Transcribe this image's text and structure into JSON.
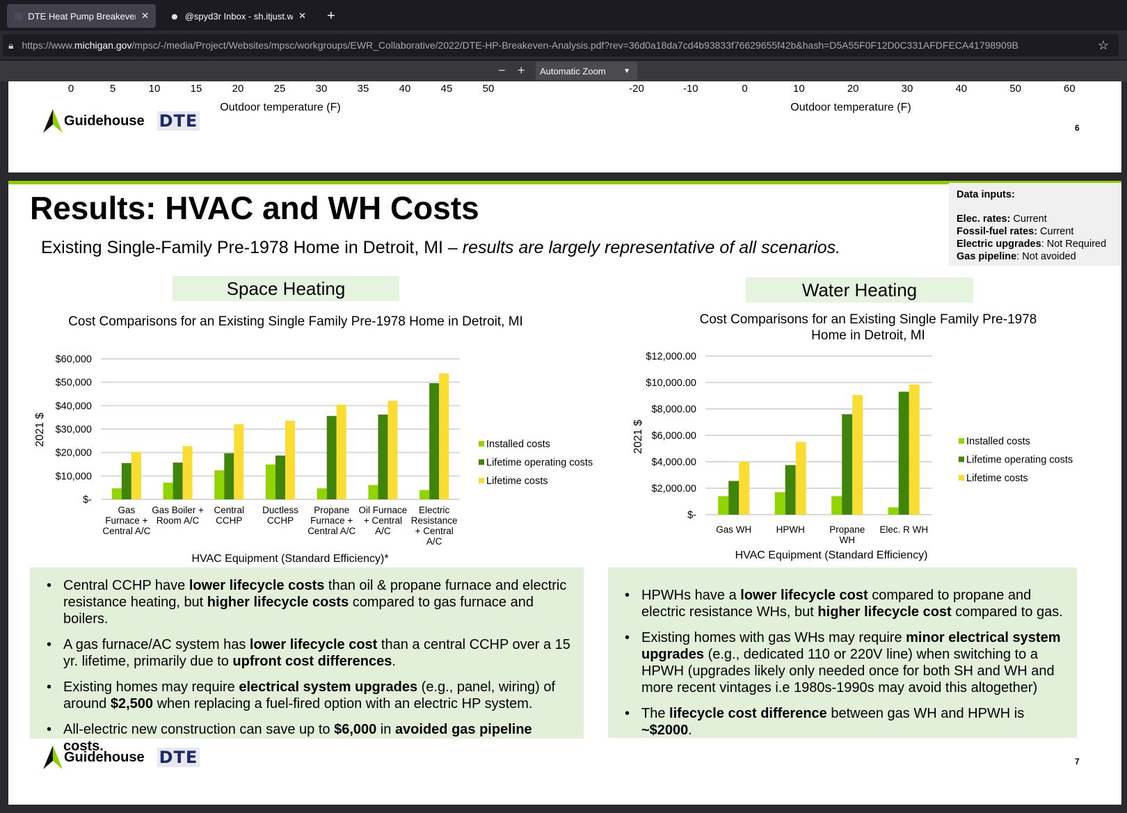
{
  "browser": {
    "tabs": [
      {
        "label": "DTE Heat Pump Breakeven",
        "active": true
      },
      {
        "label": "@spyd3r Inbox - sh.itjust.w",
        "active": false
      }
    ],
    "url_prefix": "https://www.",
    "url_domain": "michigan.gov",
    "url_rest": "/mpsc/-/media/Project/Websites/mpsc/workgroups/EWR_Collaborative/2022/DTE-HP-Breakeven-Analysis.pdf?rev=36d0a18da7cd4b93833f76629655f42b&hash=D5A55F0F12D0C331AFDFECA41798909B",
    "zoom_label": "Automatic Zoom"
  },
  "page6": {
    "left_ticks": [
      "0",
      "5",
      "10",
      "15",
      "20",
      "25",
      "30",
      "35",
      "40",
      "45",
      "50"
    ],
    "right_ticks": [
      "-20",
      "-10",
      "0",
      "10",
      "20",
      "30",
      "40",
      "50",
      "60"
    ],
    "xlabel": "Outdoor temperature (F)",
    "page_number": "6"
  },
  "logos": {
    "guidehouse": "Guidehouse",
    "dte": "DTE"
  },
  "page7": {
    "title": "Results: HVAC and WH Costs",
    "subtitle_plain": "Existing Single-Family Pre-1978 Home in Detroit, MI – ",
    "subtitle_italic": "results are largely representative of all scenarios.",
    "data_inputs": {
      "heading": "Data inputs:",
      "rows": [
        {
          "k": "Elec. rates:",
          "v": " Current"
        },
        {
          "k": "Fossil-fuel rates:",
          "v": " Current"
        },
        {
          "k": "Electric upgrades",
          "v": ": Not Required"
        },
        {
          "k": "Gas pipeline",
          "v": ": Not avoided"
        }
      ]
    },
    "space_heading": "Space Heating",
    "water_heading": "Water Heating",
    "page_number": "7",
    "space_bullets": [
      [
        "Central CCHP have ",
        {
          "b": "lower lifecycle costs"
        },
        " than oil & propane furnace and electric resistance heating, but ",
        {
          "b": "higher lifecycle costs"
        },
        " compared to gas furnace and boilers."
      ],
      [
        "A gas furnace/AC system has ",
        {
          "b": "lower lifecycle cost"
        },
        " than a central CCHP over a 15 yr. lifetime, primarily due to ",
        {
          "b": "upfront cost differences"
        },
        "."
      ],
      [
        "Existing homes may require ",
        {
          "b": "electrical system upgrades"
        },
        " (e.g., panel, wiring) of around ",
        {
          "b": "$2,500"
        },
        " when replacing a fuel-fired option with an electric HP system."
      ],
      [
        "All-electric new construction can save up to ",
        {
          "b": "$6,000"
        },
        " in ",
        {
          "b": "avoided gas pipeline costs."
        }
      ]
    ],
    "water_bullets": [
      [
        "HPWHs have a ",
        {
          "b": "lower lifecycle cost"
        },
        " compared to propane and electric resistance WHs, but ",
        {
          "b": "higher lifecycle cost"
        },
        " compared to gas."
      ],
      [
        "Existing homes with gas WHs may require ",
        {
          "b": "minor electrical system upgrades"
        },
        " (e.g., dedicated 110 or 220V line) when switching to a HPWH (upgrades likely only needed once for both SH and WH and more recent vintages i.e 1980s-1990s may avoid this altogether)"
      ],
      [
        "The ",
        {
          "b": "lifecycle cost difference"
        },
        " between gas WH and HPWH is ",
        {
          "b": "~$2000"
        },
        "."
      ]
    ]
  },
  "chart_data": [
    {
      "type": "bar",
      "title": "Cost Comparisons for an Existing Single Family Pre-1978 Home in Detroit, MI",
      "xlabel": "HVAC  Equipment  (Standard Efficiency)*",
      "ylabel": "2021 $",
      "ylim": [
        0,
        60000
      ],
      "yticks": [
        "$-",
        "$10,000",
        "$20,000",
        "$30,000",
        "$40,000",
        "$50,000",
        "$60,000"
      ],
      "categories": [
        [
          "Gas",
          "Furnace +",
          "Central A/C"
        ],
        [
          "Gas Boiler +",
          "Room A/C"
        ],
        [
          "Central",
          "CCHP"
        ],
        [
          "Ductless",
          "CCHP"
        ],
        [
          "Propane",
          "Furnace +",
          "Central A/C"
        ],
        [
          "Oil Furnace",
          "+ Central",
          "A/C"
        ],
        [
          "Electric",
          "Resistance",
          "+ Central",
          "A/C"
        ]
      ],
      "series": [
        {
          "name": "Installed costs",
          "color": "#92d400",
          "values": [
            4700,
            7100,
            12400,
            14900,
            4700,
            6100,
            4000
          ]
        },
        {
          "name": "Lifetime operating costs",
          "color": "#40840c",
          "values": [
            15500,
            15700,
            19700,
            18700,
            35600,
            36200,
            49600
          ]
        },
        {
          "name": "Lifetime costs",
          "color": "#fadd32",
          "values": [
            20200,
            22800,
            32100,
            33600,
            40400,
            42100,
            53800
          ]
        }
      ],
      "grid": true,
      "legend": "right"
    },
    {
      "type": "bar",
      "title": "Cost Comparisons for an Existing Single Family Pre-1978 Home in Detroit, MI",
      "xlabel": "HVAC  Equipment  (Standard Efficiency)",
      "ylabel": "2021 $",
      "ylim": [
        0,
        12000
      ],
      "yticks": [
        "$-",
        "$2,000.00",
        "$4,000.00",
        "$6,000.00",
        "$8,000.00",
        "$10,000.00",
        "$12,000.00"
      ],
      "categories": [
        [
          "Gas WH"
        ],
        [
          "HPWH"
        ],
        [
          "Propane",
          "WH"
        ],
        [
          "Elec. R WH"
        ]
      ],
      "series": [
        {
          "name": "Installed costs",
          "color": "#92d400",
          "values": [
            1400,
            1700,
            1400,
            550
          ]
        },
        {
          "name": "Lifetime operating costs",
          "color": "#40840c",
          "values": [
            2550,
            3750,
            7600,
            9300
          ]
        },
        {
          "name": "Lifetime costs",
          "color": "#fadd32",
          "values": [
            4000,
            5500,
            9050,
            9850
          ]
        }
      ],
      "grid": true,
      "legend": "right"
    }
  ]
}
